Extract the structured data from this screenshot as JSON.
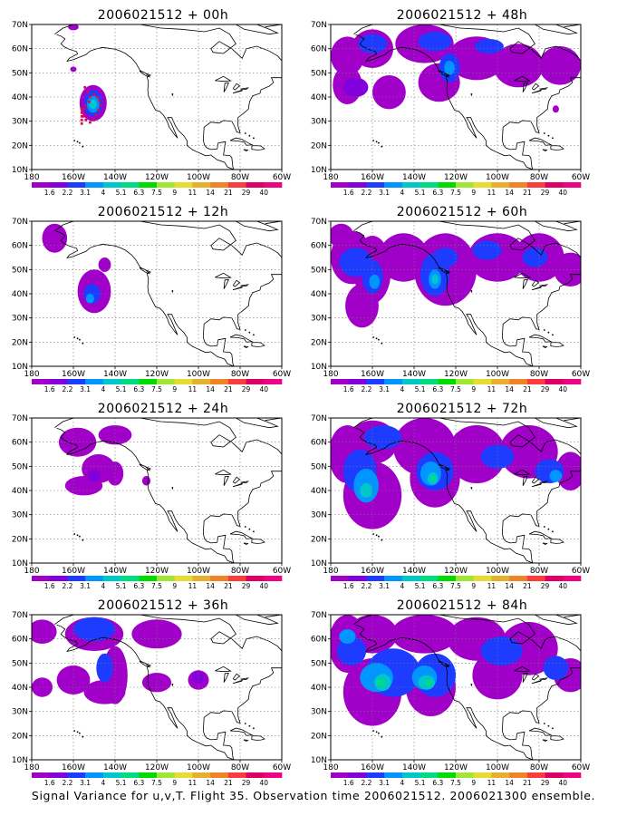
{
  "panels": [
    {
      "title": "2006021512 + 00h",
      "lead": "00h"
    },
    {
      "title": "2006021512 + 48h",
      "lead": "48h"
    },
    {
      "title": "2006021512 + 12h",
      "lead": "12h"
    },
    {
      "title": "2006021512 + 60h",
      "lead": "60h"
    },
    {
      "title": "2006021512 + 24h",
      "lead": "24h"
    },
    {
      "title": "2006021512 + 72h",
      "lead": "72h"
    },
    {
      "title": "2006021512 + 36h",
      "lead": "36h"
    },
    {
      "title": "2006021512 + 84h",
      "lead": "84h"
    }
  ],
  "axes": {
    "lat_labels": [
      "70N",
      "60N",
      "50N",
      "40N",
      "30N",
      "20N",
      "10N"
    ],
    "lon_labels": [
      "180",
      "160W",
      "140W",
      "120W",
      "100W",
      "80W",
      "60W"
    ]
  },
  "colorbar": {
    "labels": [
      "1.6",
      "2.2",
      "3.1",
      "4",
      "5.1",
      "6.3",
      "7.5",
      "9",
      "11",
      "14",
      "21",
      "29",
      "40"
    ],
    "colors": [
      "#a000c8",
      "#8200dc",
      "#1e3cff",
      "#0096ff",
      "#00c8c8",
      "#00dc82",
      "#00dc00",
      "#a0e632",
      "#e6dc32",
      "#e6af2d",
      "#f08228",
      "#fa3c3c",
      "#dc0064",
      "#f00082"
    ]
  },
  "caption": "Signal Variance for u,v,T. Flight 35. Observation time 2006021512. 2006021300 ensemble."
}
